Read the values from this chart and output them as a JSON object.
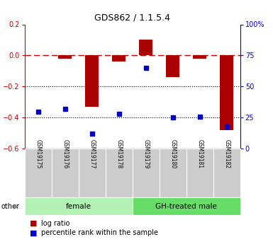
{
  "title": "GDS862 / 1.1.5.4",
  "samples": [
    "GSM19175",
    "GSM19176",
    "GSM19177",
    "GSM19178",
    "GSM19179",
    "GSM19180",
    "GSM19181",
    "GSM19182"
  ],
  "log_ratio": [
    0.0,
    -0.02,
    -0.33,
    -0.04,
    0.1,
    -0.14,
    -0.02,
    -0.48
  ],
  "percentile_rank": [
    30,
    32,
    12,
    28,
    65,
    25,
    26,
    18
  ],
  "groups": [
    {
      "label": "female",
      "start": 0,
      "end": 4,
      "color": "#b3f0b3"
    },
    {
      "label": "GH-treated male",
      "start": 4,
      "end": 8,
      "color": "#66dd66"
    }
  ],
  "ylim_left": [
    -0.6,
    0.2
  ],
  "ylim_right": [
    0,
    100
  ],
  "yticks_left": [
    0.2,
    0.0,
    -0.2,
    -0.4,
    -0.6
  ],
  "yticks_right": [
    100,
    75,
    50,
    25,
    0
  ],
  "bar_color": "#aa0000",
  "dot_color": "#0000cc",
  "hline_color": "#cc0000",
  "dotted_color": "#000000",
  "legend_items": [
    "log ratio",
    "percentile rank within the sample"
  ],
  "other_label": "other",
  "sample_box_color": "#cccccc",
  "bar_width": 0.5
}
